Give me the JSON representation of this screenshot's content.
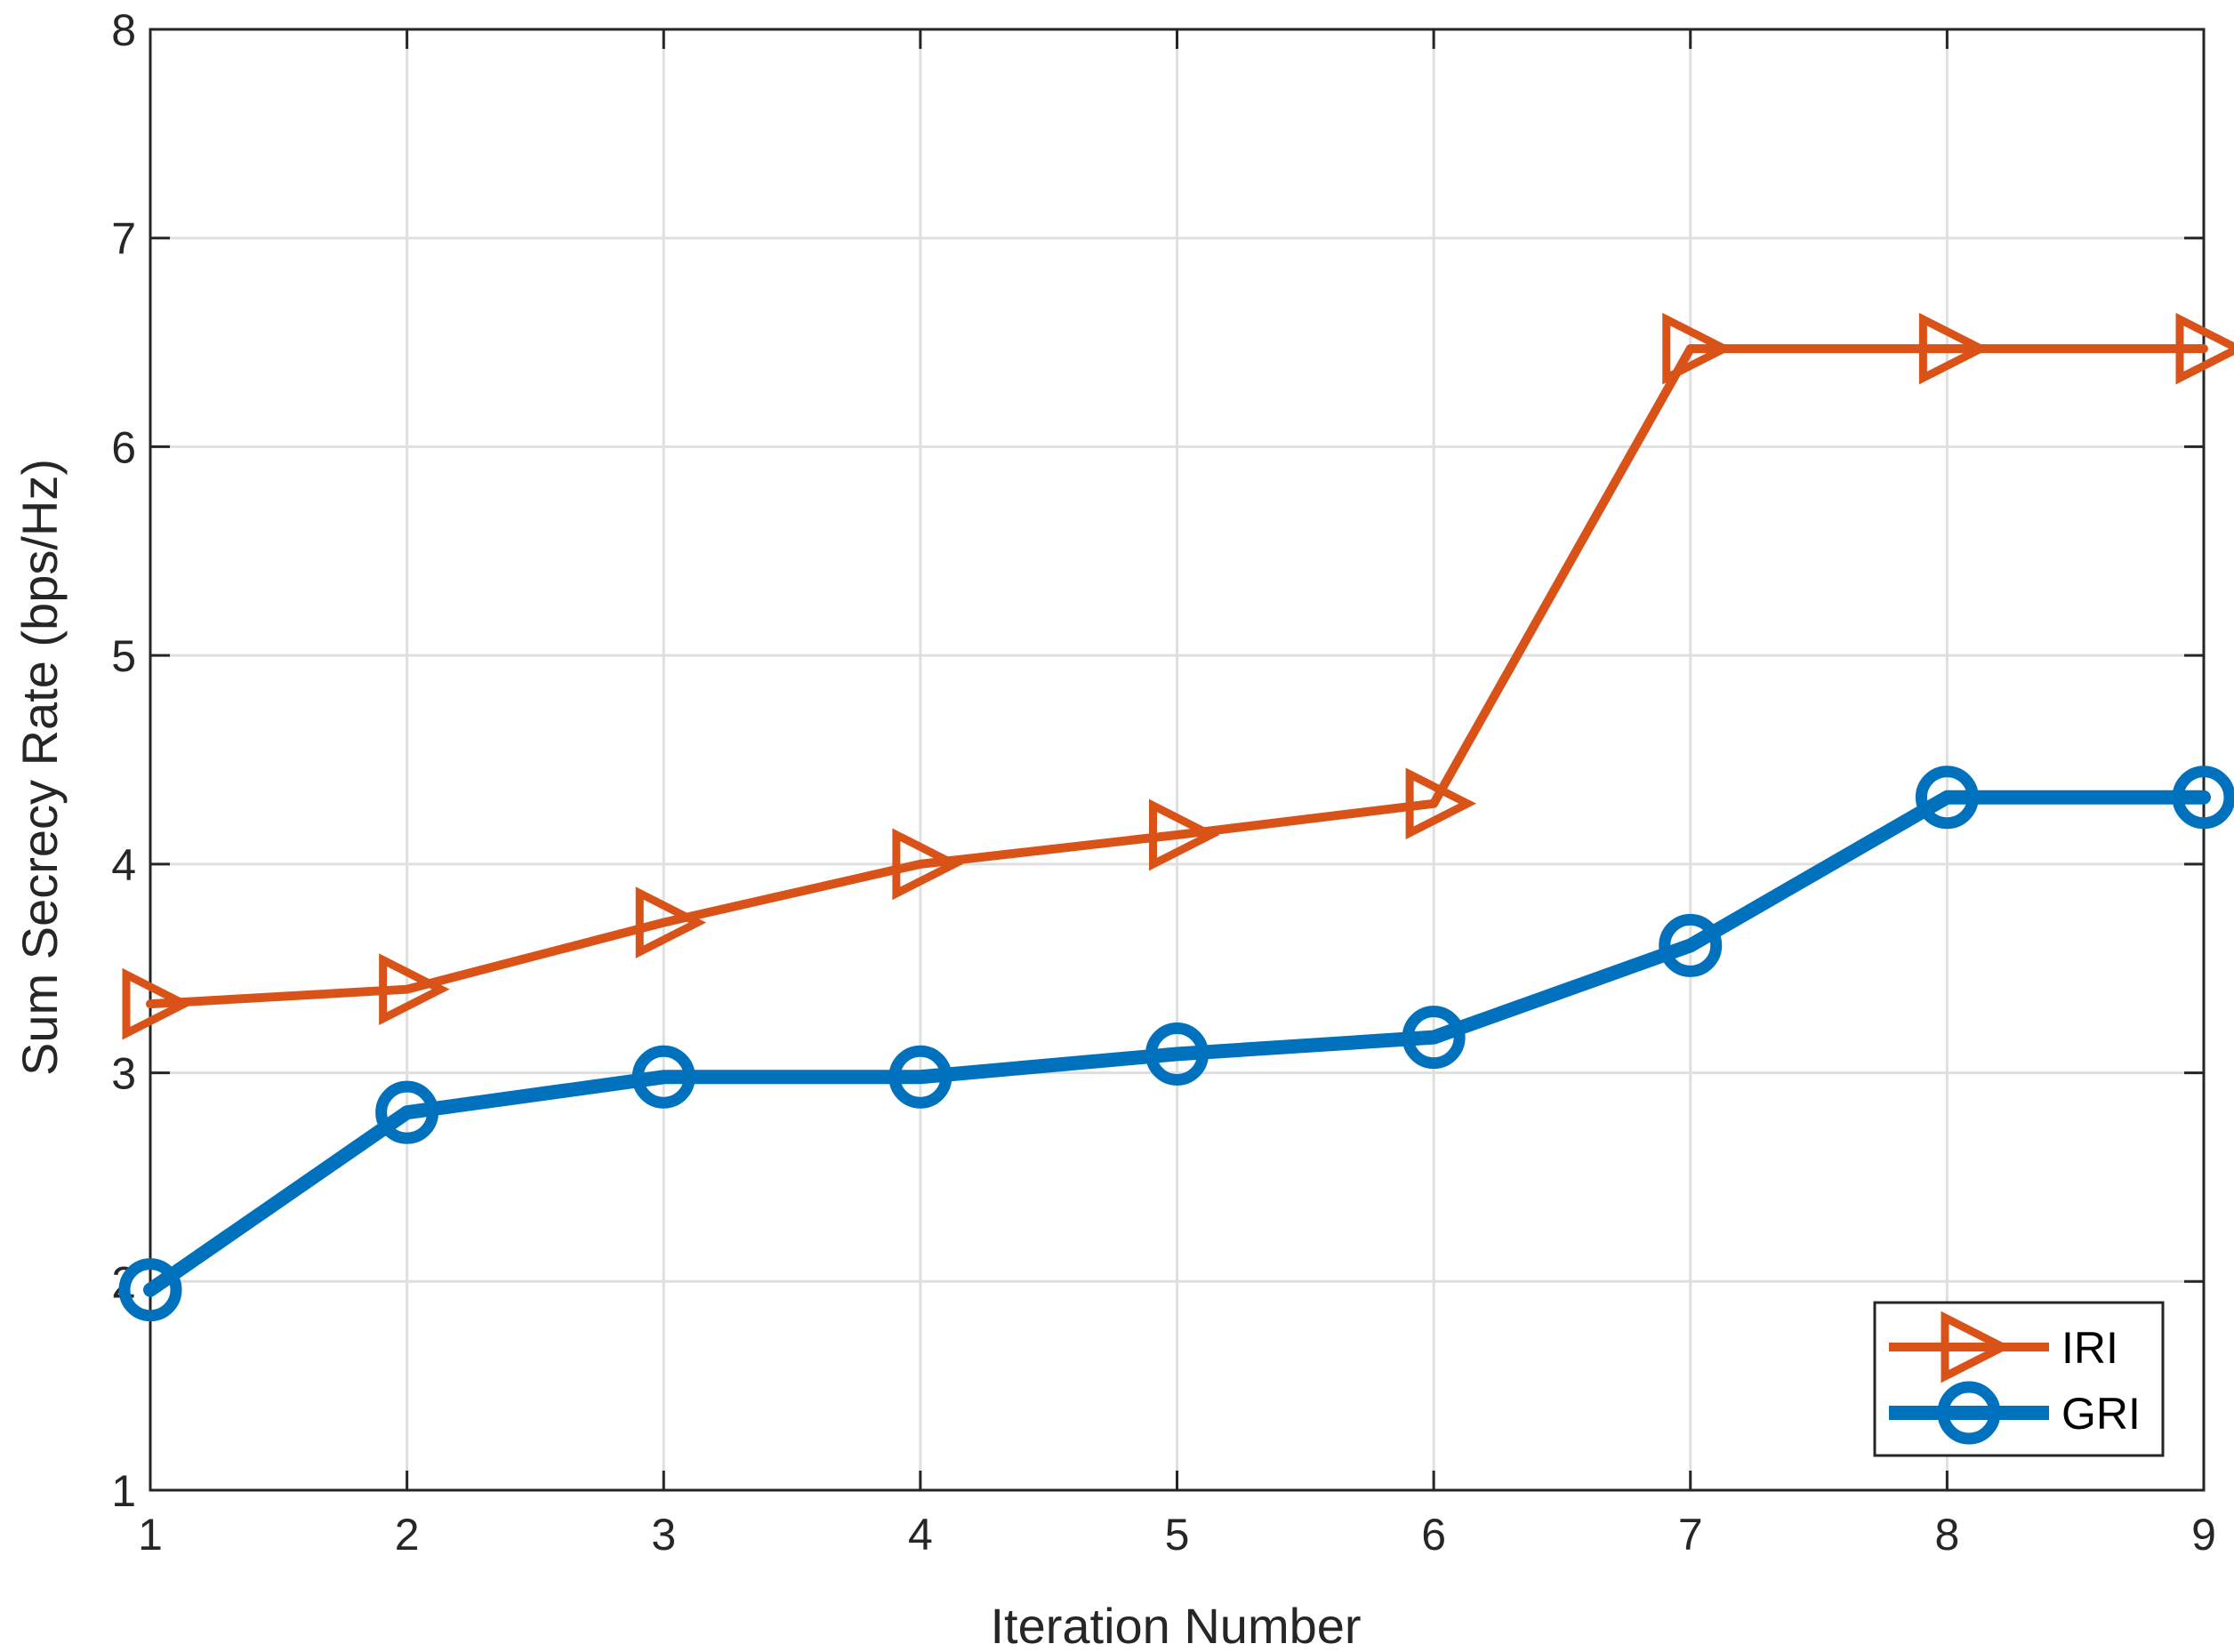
{
  "chart_data": {
    "type": "line",
    "xlabel": "Iteration Number",
    "ylabel": "Sum Secrecy Rate  (bps/Hz)",
    "xlim": [
      1,
      9
    ],
    "ylim": [
      1,
      8
    ],
    "xticks": [
      1,
      2,
      3,
      4,
      5,
      6,
      7,
      8,
      9
    ],
    "yticks": [
      1,
      2,
      3,
      4,
      5,
      6,
      7,
      8
    ],
    "grid": true,
    "legend_position": "bottom-right",
    "x": [
      1,
      2,
      3,
      4,
      5,
      6,
      7,
      8,
      9
    ],
    "series": [
      {
        "name": "IRI",
        "color": "#d95319",
        "marker": "triangle-right",
        "values": [
          3.33,
          3.4,
          3.72,
          4.0,
          4.14,
          4.29,
          6.47,
          6.47,
          6.47
        ]
      },
      {
        "name": "GRI",
        "color": "#0072bd",
        "marker": "circle",
        "values": [
          1.96,
          2.81,
          2.98,
          2.98,
          3.09,
          3.17,
          3.61,
          4.32,
          4.32
        ]
      }
    ]
  }
}
